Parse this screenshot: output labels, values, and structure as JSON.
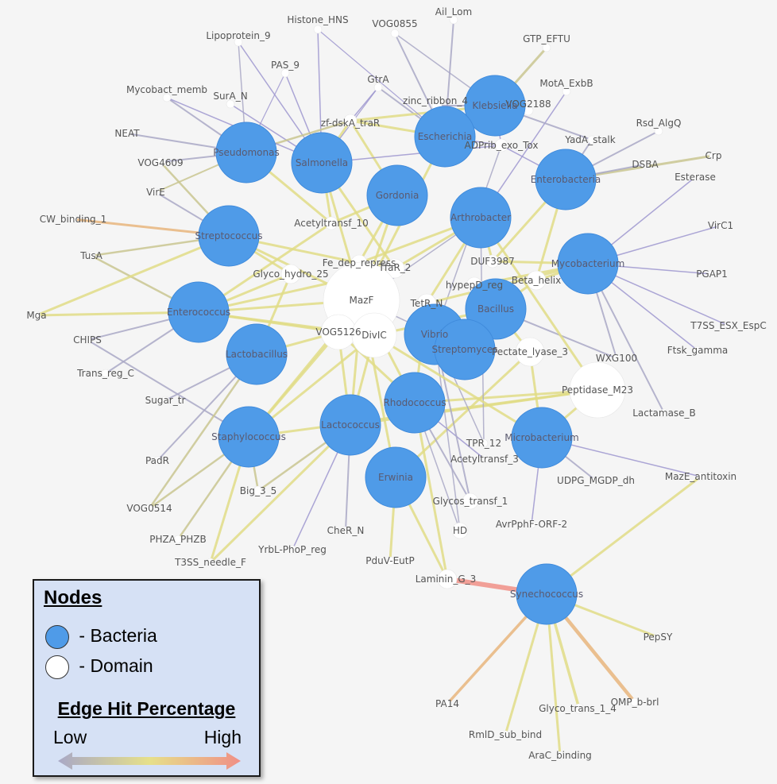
{
  "legend": {
    "nodes_title": "Nodes",
    "bacteria_label": " - Bacteria",
    "domain_label": " - Domain",
    "edge_title": "Edge Hit Percentage",
    "low_label": "Low",
    "high_label": "High",
    "bacteria_color": "#4f9be8",
    "domain_color": "#ffffff",
    "low_color": "#a9a8c6",
    "mid_color": "#e6e08a",
    "high_color": "#f08f86"
  },
  "bacteria": [
    {
      "id": "klebsiella",
      "label": "Klebsiella"
    },
    {
      "id": "escherichia",
      "label": "Escherichia"
    },
    {
      "id": "pseudomonas",
      "label": "Pseudomonas"
    },
    {
      "id": "salmonella",
      "label": "Salmonella"
    },
    {
      "id": "gordonia",
      "label": "Gordonia"
    },
    {
      "id": "arthrobacter",
      "label": "Arthrobacter"
    },
    {
      "id": "enterobacteria",
      "label": "Enterobacteria"
    },
    {
      "id": "streptococcus",
      "label": "Streptococcus"
    },
    {
      "id": "mycobacterium",
      "label": "Mycobacterium"
    },
    {
      "id": "enterococcus",
      "label": "Enterococcus"
    },
    {
      "id": "bacillus",
      "label": "Bacillus"
    },
    {
      "id": "lactobacillus",
      "label": "Lactobacillus"
    },
    {
      "id": "vibrio",
      "label": "Vibrio"
    },
    {
      "id": "streptomyces",
      "label": "Streptomyces"
    },
    {
      "id": "rhodococcus",
      "label": "Rhodococcus"
    },
    {
      "id": "staphylococcus",
      "label": "Staphylococcus"
    },
    {
      "id": "lactococcus",
      "label": "Lactococcus"
    },
    {
      "id": "microbacterium",
      "label": "Microbacterium"
    },
    {
      "id": "erwinia",
      "label": "Erwinia"
    },
    {
      "id": "synechococcus",
      "label": "Synechococcus"
    }
  ],
  "domains": [
    {
      "id": "histone_hns",
      "label": "Histone_HNS"
    },
    {
      "id": "ail_lom",
      "label": "Ail_Lom"
    },
    {
      "id": "vog0855",
      "label": "VOG0855"
    },
    {
      "id": "lipoprotein_9",
      "label": "Lipoprotein_9"
    },
    {
      "id": "gtp_eftu",
      "label": "GTP_EFTU"
    },
    {
      "id": "pas_9",
      "label": "PAS_9"
    },
    {
      "id": "gtra",
      "label": "GtrA"
    },
    {
      "id": "mota_exbb",
      "label": "MotA_ExbB"
    },
    {
      "id": "mycobact_memb",
      "label": "Mycobact_memb"
    },
    {
      "id": "sura_n",
      "label": "SurA_N"
    },
    {
      "id": "zinc_ribbon_4",
      "label": "zinc_ribbon_4"
    },
    {
      "id": "vog2188",
      "label": "VOG2188"
    },
    {
      "id": "zf_dska_trar",
      "label": "zf-dskA_traR"
    },
    {
      "id": "rsd_algq",
      "label": "Rsd_AlgQ"
    },
    {
      "id": "neat",
      "label": "NEAT"
    },
    {
      "id": "adprib_exo_tox",
      "label": "ADPrib_exo_Tox"
    },
    {
      "id": "yada_stalk",
      "label": "YadA_stalk"
    },
    {
      "id": "crp",
      "label": "Crp"
    },
    {
      "id": "vog4609",
      "label": "VOG4609"
    },
    {
      "id": "dsba",
      "label": "DSBA"
    },
    {
      "id": "esterase",
      "label": "Esterase"
    },
    {
      "id": "vire",
      "label": "VirE"
    },
    {
      "id": "cw_binding_1",
      "label": "CW_binding_1"
    },
    {
      "id": "acetyltransf_10",
      "label": "Acetyltransf_10"
    },
    {
      "id": "virc1",
      "label": "VirC1"
    },
    {
      "id": "tusa",
      "label": "TusA"
    },
    {
      "id": "fe_dep_repress",
      "label": "Fe_dep_repress"
    },
    {
      "id": "tfar_2",
      "label": "TfaR_2"
    },
    {
      "id": "duf3987",
      "label": "DUF3987"
    },
    {
      "id": "glyco_hydro_25",
      "label": "Glyco_hydro_25"
    },
    {
      "id": "pgap1",
      "label": "PGAP1"
    },
    {
      "id": "hypeptd_reg",
      "label": "hypepD_reg"
    },
    {
      "id": "beta_helix",
      "label": "Beta_helix"
    },
    {
      "id": "mazf",
      "label": "MazF"
    },
    {
      "id": "tetr_n",
      "label": "TetR_N"
    },
    {
      "id": "mga",
      "label": "Mga"
    },
    {
      "id": "t7ss_esx_espc",
      "label": "T7SS_ESX_EspC"
    },
    {
      "id": "chips",
      "label": "CHIPS"
    },
    {
      "id": "vog5126",
      "label": "VOG5126"
    },
    {
      "id": "divic",
      "label": "DivIC"
    },
    {
      "id": "pectate_lyase_3",
      "label": "Pectate_lyase_3"
    },
    {
      "id": "ftsk_gamma",
      "label": "Ftsk_gamma"
    },
    {
      "id": "wxg100",
      "label": "WXG100"
    },
    {
      "id": "trans_reg_c",
      "label": "Trans_reg_C"
    },
    {
      "id": "peptidase_m23",
      "label": "Peptidase_M23"
    },
    {
      "id": "sugar_tr",
      "label": "Sugar_tr"
    },
    {
      "id": "lactamase_b",
      "label": "Lactamase_B"
    },
    {
      "id": "tpr_12",
      "label": "TPR_12"
    },
    {
      "id": "acetyltransf_3",
      "label": "Acetyltransf_3"
    },
    {
      "id": "padr",
      "label": "PadR"
    },
    {
      "id": "udpg_mgdp_dh",
      "label": "UDPG_MGDP_dh"
    },
    {
      "id": "maze_antitoxin",
      "label": "MazE_antitoxin"
    },
    {
      "id": "big_3_5",
      "label": "Big_3_5"
    },
    {
      "id": "glycos_transf_1",
      "label": "Glycos_transf_1"
    },
    {
      "id": "vog0514",
      "label": "VOG0514"
    },
    {
      "id": "avrpphf_orf_2",
      "label": "AvrPphF-ORF-2"
    },
    {
      "id": "cher_n",
      "label": "CheR_N"
    },
    {
      "id": "hd",
      "label": "HD"
    },
    {
      "id": "phza_phzb",
      "label": "PHZA_PHZB"
    },
    {
      "id": "yrbl_phop_reg",
      "label": "YrbL-PhoP_reg"
    },
    {
      "id": "pduv_eutp",
      "label": "PduV-EutP"
    },
    {
      "id": "t3ss_needle_f",
      "label": "T3SS_needle_F"
    },
    {
      "id": "laminin_g_3",
      "label": "Laminin_G_3"
    },
    {
      "id": "pepsy",
      "label": "PepSY"
    },
    {
      "id": "pa14",
      "label": "PA14"
    },
    {
      "id": "glyco_trans_1_4",
      "label": "Glyco_trans_1_4"
    },
    {
      "id": "omp_b_brl",
      "label": "OMP_b-brl"
    },
    {
      "id": "rmld_sub_bind",
      "label": "RmlD_sub_bind"
    },
    {
      "id": "arac_binding",
      "label": "AraC_binding"
    }
  ]
}
